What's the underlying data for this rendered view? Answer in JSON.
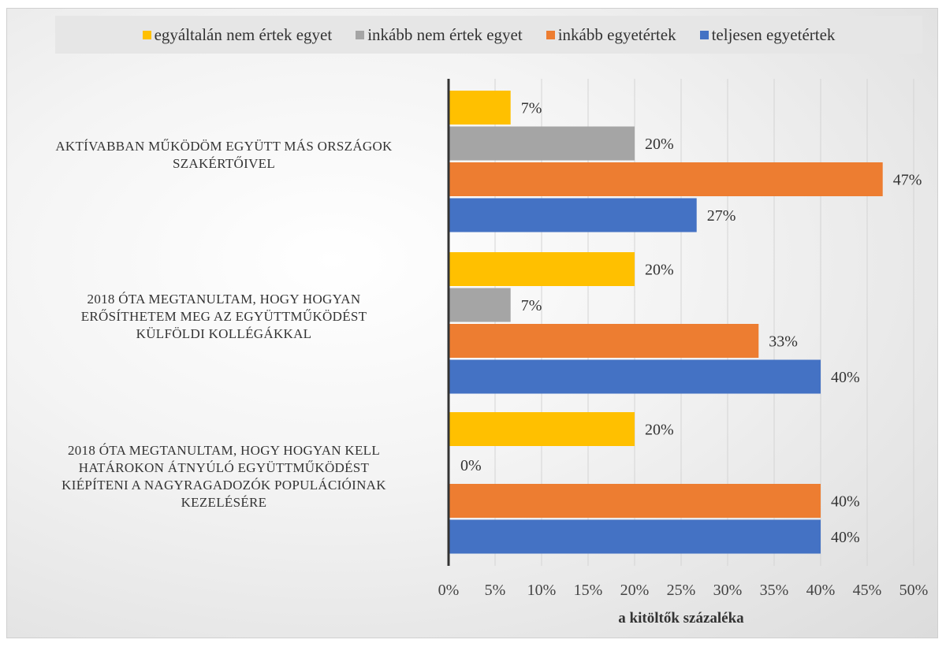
{
  "chart_data": {
    "type": "bar",
    "orientation": "horizontal",
    "categories": [
      "AKTÍVABBAN MŰKÖDÖM EGYÜTT MÁS ORSZÁGOK SZAKÉRTŐIVEL",
      "2018 ÓTA MEGTANULTAM, HOGY HOGYAN ERŐSÍTHETEM MEG AZ EGYÜTTMŰKÖDÉST KÜLFÖLDI KOLLÉGÁKKAL",
      "2018 ÓTA MEGTANULTAM, HOGY HOGYAN KELL HATÁROKON ÁTNYÚLÓ EGYÜTTMŰKÖDÉST KIÉPÍTENI A NAGYRAGADOZÓK POPULÁCIÓINAK KEZELÉSÉRE"
    ],
    "category_lines": [
      [
        "AKTÍVABBAN MŰKÖDÖM EGYÜTT MÁS ORSZÁGOK",
        "SZAKÉRTŐIVEL"
      ],
      [
        "2018 ÓTA MEGTANULTAM, HOGY HOGYAN",
        "ERŐSÍTHETEM MEG AZ EGYÜTTMŰKÖDÉST",
        "KÜLFÖLDI KOLLÉGÁKKAL"
      ],
      [
        "2018 ÓTA MEGTANULTAM, HOGY HOGYAN KELL",
        "HATÁROKON ÁTNYÚLÓ EGYÜTTMŰKÖDÉST",
        "KIÉPÍTENI A NAGYRAGADOZÓK POPULÁCIÓINAK",
        "KEZELÉSÉRE"
      ]
    ],
    "series": [
      {
        "name": "egyáltalán nem értek egyet",
        "color": "#ffc000",
        "values": [
          6.67,
          20,
          20
        ],
        "labels": [
          "7%",
          "20%",
          "20%"
        ]
      },
      {
        "name": "inkább nem értek egyet",
        "color": "#a5a5a5",
        "values": [
          20,
          6.67,
          0
        ],
        "labels": [
          "20%",
          "7%",
          "0%"
        ]
      },
      {
        "name": "inkább egyetértek",
        "color": "#ed7d31",
        "values": [
          46.67,
          33.33,
          40
        ],
        "labels": [
          "47%",
          "33%",
          "40%"
        ]
      },
      {
        "name": "teljesen egyetértek",
        "color": "#4472c4",
        "values": [
          26.67,
          40,
          40
        ],
        "labels": [
          "27%",
          "40%",
          "40%"
        ]
      }
    ],
    "xlabel": "a kitöltők százaléka",
    "xlim": [
      0,
      50
    ],
    "xticks": [
      "0%",
      "5%",
      "10%",
      "15%",
      "20%",
      "25%",
      "30%",
      "35%",
      "40%",
      "45%",
      "50%"
    ],
    "grid": true,
    "legend": "top"
  }
}
